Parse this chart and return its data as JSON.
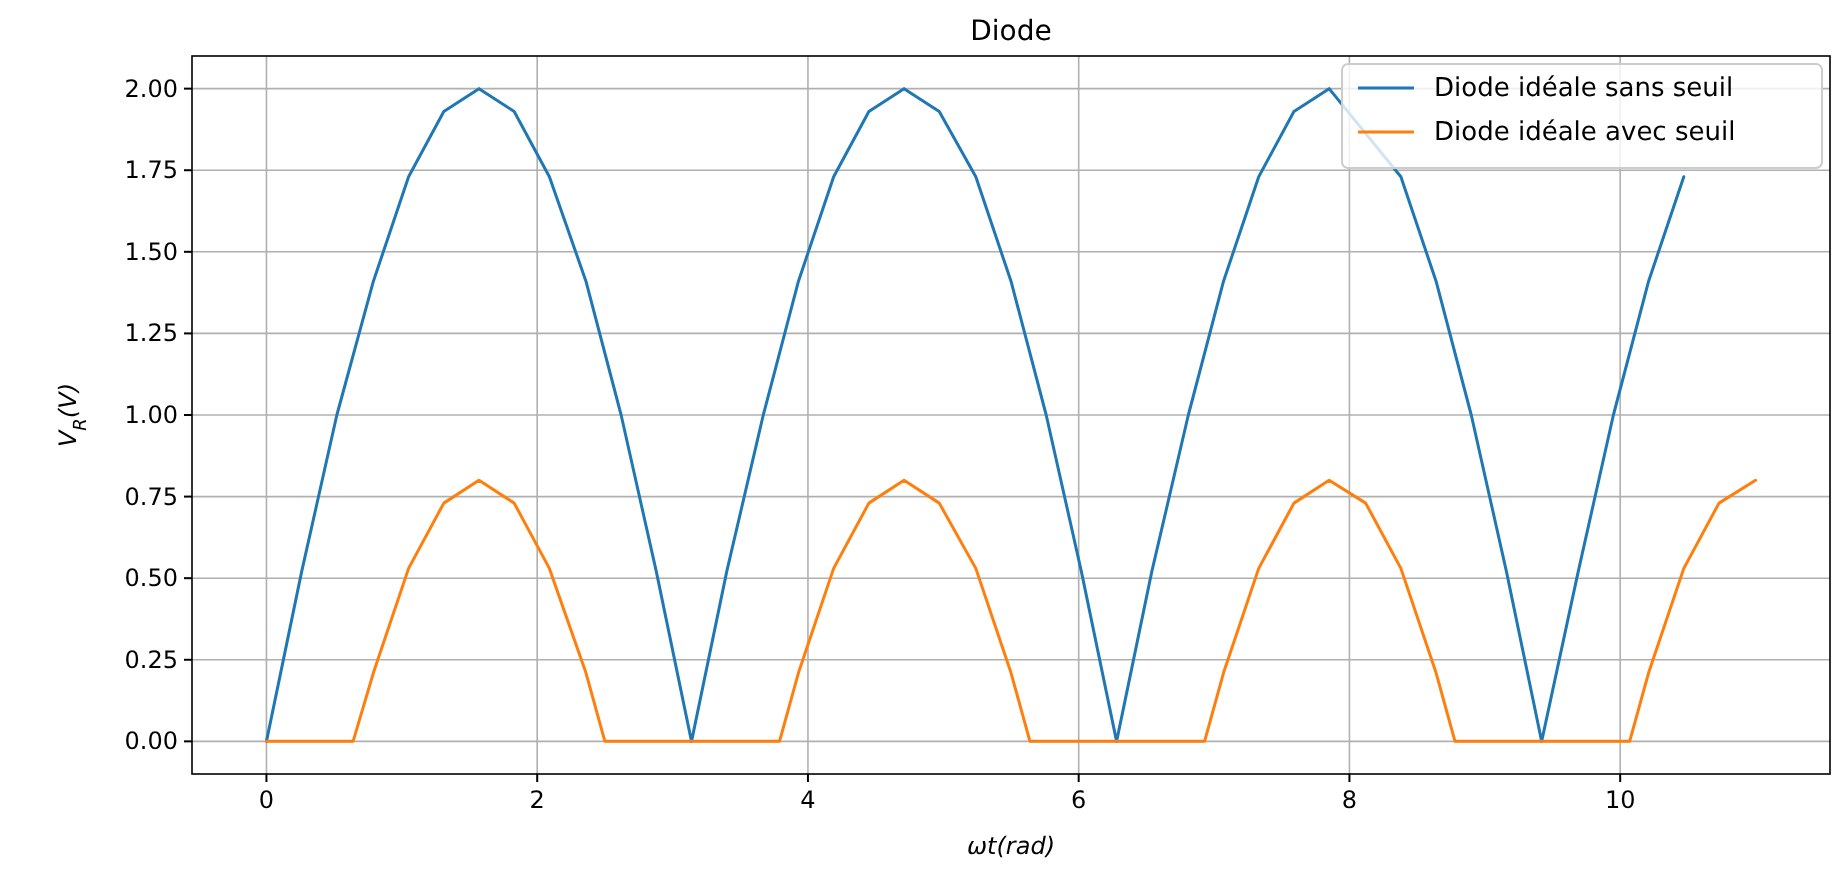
{
  "chart_data": {
    "type": "line",
    "title": "Diode",
    "xlabel": "ωt(rad)",
    "ylabel": "V$_{R}$(V)",
    "xlim": [
      -0.55,
      11.55
    ],
    "xticks": [
      0,
      2,
      4,
      6,
      8,
      10
    ],
    "ylim": [
      -0.1,
      2.1
    ],
    "yticks": [
      {
        "value": 0,
        "label": "0.00"
      },
      {
        "value": 0.25,
        "label": "0.25"
      },
      {
        "value": 0.5,
        "label": "0.50"
      },
      {
        "value": 0.75,
        "label": "0.75"
      },
      {
        "value": 1,
        "label": "1.00"
      },
      {
        "value": 1.25,
        "label": "1.25"
      },
      {
        "value": 1.5,
        "label": "1.50"
      },
      {
        "value": 1.75,
        "label": "1.75"
      },
      {
        "value": 2,
        "label": "2.00"
      }
    ],
    "grid": true,
    "legend": "top right",
    "series": [
      {
        "name": "Diode idéale sans seuil",
        "color": "#1f77b4",
        "x": [
          0,
          0.26,
          0.52,
          0.79,
          1.05,
          1.31,
          1.57,
          1.83,
          2.09,
          2.36,
          2.62,
          2.88,
          3.14,
          3.4,
          3.67,
          3.93,
          4.19,
          4.45,
          4.71,
          4.97,
          5.24,
          5.5,
          5.76,
          6.02,
          6.28,
          6.54,
          6.81,
          7.07,
          7.33,
          7.59,
          7.85,
          8.38,
          8.64,
          8.9,
          9.16,
          9.42,
          9.69,
          9.95,
          10.21,
          10.47
        ],
        "values": [
          0,
          0.52,
          1,
          1.41,
          1.73,
          1.93,
          2,
          1.93,
          1.73,
          1.41,
          1,
          0.52,
          0,
          0.52,
          1,
          1.41,
          1.73,
          1.93,
          2,
          1.93,
          1.73,
          1.41,
          1,
          0.52,
          0,
          0.52,
          1,
          1.41,
          1.73,
          1.93,
          2,
          1.73,
          1.41,
          1,
          0.52,
          0,
          0.52,
          1,
          1.41,
          1.73
        ]
      },
      {
        "name": "Diode idéale avec seuil",
        "color": "#ff7f0e",
        "x": [
          0,
          0.64,
          0.79,
          1.05,
          1.31,
          1.57,
          1.83,
          2.09,
          2.36,
          2.5,
          3.14,
          3.79,
          3.93,
          4.19,
          4.45,
          4.71,
          4.97,
          5.24,
          5.5,
          5.64,
          6.28,
          6.93,
          7.07,
          7.33,
          7.59,
          7.85,
          8.12,
          8.38,
          8.64,
          8.78,
          9.42,
          10.07,
          10.21,
          10.47,
          10.73,
          11.0
        ],
        "values": [
          0,
          0,
          0.21,
          0.53,
          0.73,
          0.8,
          0.73,
          0.53,
          0.21,
          0,
          0,
          0,
          0.21,
          0.53,
          0.73,
          0.8,
          0.73,
          0.53,
          0.21,
          0,
          0,
          0,
          0.21,
          0.53,
          0.73,
          0.8,
          0.73,
          0.53,
          0.21,
          0,
          0,
          0,
          0.21,
          0.53,
          0.73,
          0.8
        ]
      }
    ]
  }
}
